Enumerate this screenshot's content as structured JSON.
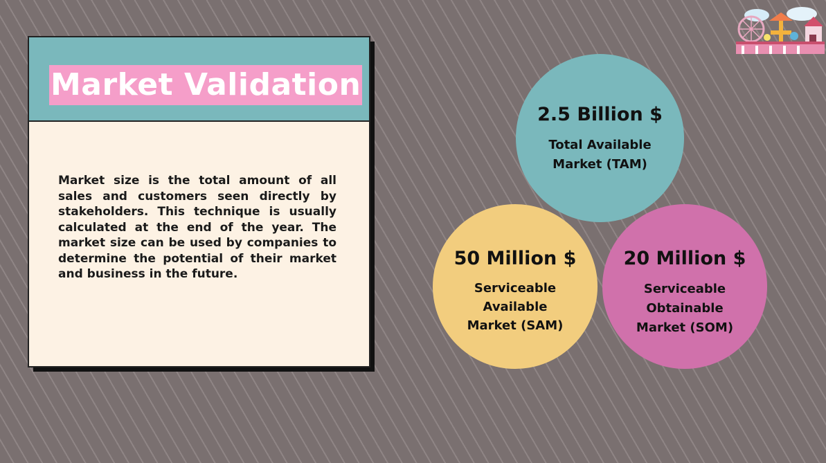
{
  "card": {
    "title": "Market Validation",
    "description": "Market size is the total amount of all sales and customers seen directly by stakeholders. This technique is usually calculated at the end of the year. The market size can be used by companies to determine the potential of their market and business in the future."
  },
  "circles": {
    "tam": {
      "value": "2.5 Billion $",
      "label": "Total Available Market (TAM)"
    },
    "sam": {
      "value": "50 Million $",
      "label": "Serviceable Available Market (SAM)"
    },
    "som": {
      "value": "20 Million $",
      "label": "Serviceable Obtainable Market (SOM)"
    }
  },
  "colors": {
    "background": "#7a7070",
    "teal": "#7ab8bc",
    "yellow": "#f2cd7e",
    "pink": "#d071ab",
    "title_highlight": "#f59ec9",
    "card": "#fdf2e4"
  },
  "decor": {
    "logo": "amusement-park-icon"
  }
}
